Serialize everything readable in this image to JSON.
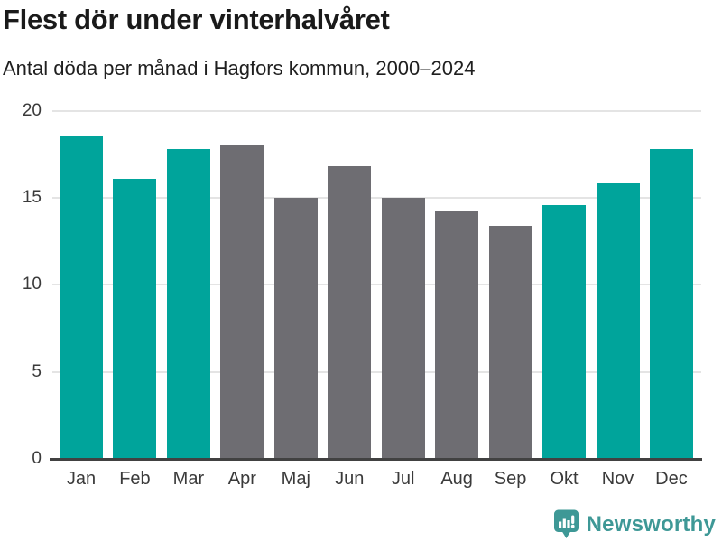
{
  "header": {
    "title": "Flest dör under vinterhalvåret",
    "subtitle": "Antal döda per månad i Hagfors kommun, 2000–2024"
  },
  "chart_data": {
    "type": "bar",
    "title": "Flest dör under vinterhalvåret",
    "subtitle": "Antal döda per månad i Hagfors kommun, 2000–2024",
    "categories": [
      "Jan",
      "Feb",
      "Mar",
      "Apr",
      "Maj",
      "Jun",
      "Jul",
      "Aug",
      "Sep",
      "Okt",
      "Nov",
      "Dec"
    ],
    "values": [
      18.5,
      16.1,
      17.8,
      18.0,
      15.0,
      16.8,
      15.0,
      14.2,
      13.4,
      14.6,
      15.8,
      17.8
    ],
    "highlighted_categories": [
      "Jan",
      "Feb",
      "Mar",
      "Okt",
      "Nov",
      "Dec"
    ],
    "highlight_color": "#00a49b",
    "base_color": "#6e6d72",
    "xlabel": "",
    "ylabel": "",
    "ylim": [
      0,
      20
    ],
    "yticks": [
      0,
      5,
      10,
      15,
      20
    ],
    "grid": true,
    "legend": "none"
  },
  "footer": {
    "brand": "Newsworthy",
    "brand_color": "#3e9896",
    "logo_icon": "bar-chart-speech-bubble-icon"
  },
  "colors": {
    "gridline": "#e4e4e4",
    "axis_line": "#414141",
    "tick_label": "#3a3a3a",
    "background": "#ffffff"
  }
}
